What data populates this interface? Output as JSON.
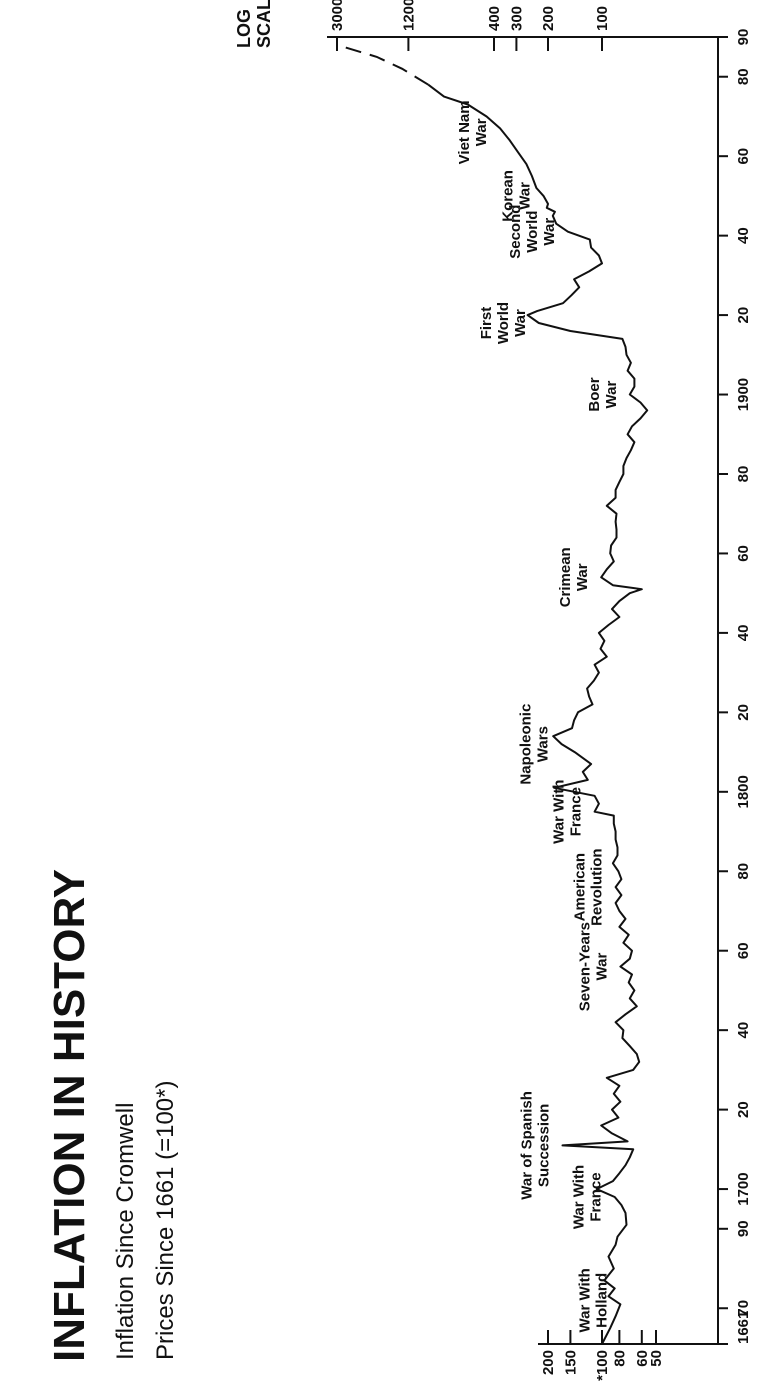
{
  "chart_data": {
    "type": "line",
    "title": "INFLATION IN HISTORY",
    "subtitle": "Inflation Since Cromwell",
    "subtitle2": "Prices Since 1661 (=100*)",
    "scale_label": [
      "LOG",
      "SCALE"
    ],
    "scale": "log",
    "x_range": [
      1661,
      1990
    ],
    "x_tick_labels": [
      {
        "x": 1661,
        "label": "1661"
      },
      {
        "x": 1670,
        "label": "70"
      },
      {
        "x": 1690,
        "label": "90"
      },
      {
        "x": 1700,
        "label": "1700"
      },
      {
        "x": 1720,
        "label": "20"
      },
      {
        "x": 1740,
        "label": "40"
      },
      {
        "x": 1760,
        "label": "60"
      },
      {
        "x": 1780,
        "label": "80"
      },
      {
        "x": 1800,
        "label": "1800"
      },
      {
        "x": 1820,
        "label": "20"
      },
      {
        "x": 1840,
        "label": "40"
      },
      {
        "x": 1860,
        "label": "60"
      },
      {
        "x": 1880,
        "label": "80"
      },
      {
        "x": 1900,
        "label": "1900"
      },
      {
        "x": 1920,
        "label": "20"
      },
      {
        "x": 1940,
        "label": "40"
      },
      {
        "x": 1960,
        "label": "60"
      },
      {
        "x": 1980,
        "label": "80"
      },
      {
        "x": 1990,
        "label": "90"
      }
    ],
    "left_axis_ticks": [
      {
        "v": 50,
        "label": "50"
      },
      {
        "v": 60,
        "label": "60"
      },
      {
        "v": 80,
        "label": "80"
      },
      {
        "v": 100,
        "label": "*100"
      },
      {
        "v": 150,
        "label": "150"
      },
      {
        "v": 200,
        "label": "200"
      }
    ],
    "right_axis_ticks": [
      {
        "v": 100,
        "label": "100"
      },
      {
        "v": 200,
        "label": "200"
      },
      {
        "v": 300,
        "label": "300"
      },
      {
        "v": 400,
        "label": "400"
      },
      {
        "v": 1200,
        "label": "1200"
      },
      {
        "v": 3000,
        "label": "3000"
      }
    ],
    "series": [
      {
        "values_solid": [
          [
            1661,
            100
          ],
          [
            1665,
            90
          ],
          [
            1668,
            84
          ],
          [
            1671,
            79
          ],
          [
            1673,
            92
          ],
          [
            1675,
            85
          ],
          [
            1677,
            97
          ],
          [
            1680,
            86
          ],
          [
            1683,
            92
          ],
          [
            1686,
            84
          ],
          [
            1688,
            82
          ],
          [
            1691,
            73
          ],
          [
            1694,
            74
          ],
          [
            1696,
            78
          ],
          [
            1698,
            85
          ],
          [
            1700,
            107
          ],
          [
            1702,
            87
          ],
          [
            1704,
            80
          ],
          [
            1706,
            74
          ],
          [
            1708,
            70
          ],
          [
            1710,
            67
          ],
          [
            1711,
            166
          ],
          [
            1712,
            72
          ],
          [
            1714,
            88
          ],
          [
            1716,
            101
          ],
          [
            1718,
            81
          ],
          [
            1720,
            88
          ],
          [
            1722,
            79
          ],
          [
            1724,
            86
          ],
          [
            1726,
            80
          ],
          [
            1728,
            94
          ],
          [
            1730,
            67
          ],
          [
            1732,
            62
          ],
          [
            1734,
            64
          ],
          [
            1736,
            70
          ],
          [
            1738,
            77
          ],
          [
            1740,
            76
          ],
          [
            1742,
            84
          ],
          [
            1744,
            74
          ],
          [
            1746,
            64
          ],
          [
            1748,
            70
          ],
          [
            1750,
            66
          ],
          [
            1752,
            71
          ],
          [
            1754,
            68
          ],
          [
            1756,
            79
          ],
          [
            1758,
            70
          ],
          [
            1760,
            68
          ],
          [
            1762,
            76
          ],
          [
            1764,
            71
          ],
          [
            1766,
            80
          ],
          [
            1768,
            74
          ],
          [
            1770,
            80
          ],
          [
            1772,
            84
          ],
          [
            1774,
            78
          ],
          [
            1776,
            84
          ],
          [
            1778,
            78
          ],
          [
            1780,
            81
          ],
          [
            1782,
            87
          ],
          [
            1784,
            82
          ],
          [
            1786,
            82
          ],
          [
            1788,
            84
          ],
          [
            1790,
            84
          ],
          [
            1792,
            86
          ],
          [
            1794,
            86
          ],
          [
            1795,
            110
          ],
          [
            1797,
            104
          ],
          [
            1799,
            110
          ],
          [
            1801,
            185
          ],
          [
            1803,
            120
          ],
          [
            1805,
            128
          ],
          [
            1807,
            115
          ],
          [
            1810,
            142
          ],
          [
            1812,
            168
          ],
          [
            1814,
            187
          ],
          [
            1816,
            147
          ],
          [
            1818,
            143
          ],
          [
            1820,
            136
          ],
          [
            1822,
            113
          ],
          [
            1824,
            118
          ],
          [
            1826,
            121
          ],
          [
            1828,
            111
          ],
          [
            1830,
            104
          ],
          [
            1832,
            110
          ],
          [
            1834,
            94
          ],
          [
            1836,
            102
          ],
          [
            1838,
            97
          ],
          [
            1840,
            104
          ],
          [
            1842,
            92
          ],
          [
            1844,
            80
          ],
          [
            1846,
            88
          ],
          [
            1848,
            80
          ],
          [
            1850,
            70
          ],
          [
            1851,
            60
          ],
          [
            1852,
            87
          ],
          [
            1854,
            101
          ],
          [
            1856,
            94
          ],
          [
            1858,
            86
          ],
          [
            1860,
            90
          ],
          [
            1862,
            89
          ],
          [
            1864,
            83
          ],
          [
            1866,
            83
          ],
          [
            1868,
            84
          ],
          [
            1870,
            83
          ],
          [
            1872,
            94
          ],
          [
            1874,
            84
          ],
          [
            1876,
            84
          ],
          [
            1878,
            80
          ],
          [
            1880,
            76
          ],
          [
            1882,
            76
          ],
          [
            1884,
            73
          ],
          [
            1886,
            69
          ],
          [
            1888,
            66
          ],
          [
            1890,
            72
          ],
          [
            1892,
            68
          ],
          [
            1894,
            61
          ],
          [
            1896,
            56
          ],
          [
            1898,
            61
          ],
          [
            1900,
            70
          ],
          [
            1902,
            66
          ],
          [
            1904,
            66
          ],
          [
            1906,
            72
          ],
          [
            1908,
            69
          ],
          [
            1910,
            73
          ],
          [
            1912,
            74
          ],
          [
            1914,
            77
          ],
          [
            1916,
            150
          ],
          [
            1918,
            225
          ],
          [
            1920,
            260
          ],
          [
            1921,
            230
          ],
          [
            1923,
            165
          ],
          [
            1925,
            148
          ],
          [
            1927,
            134
          ],
          [
            1929,
            143
          ],
          [
            1931,
            118
          ],
          [
            1933,
            100
          ],
          [
            1935,
            104
          ],
          [
            1937,
            115
          ],
          [
            1939,
            117
          ],
          [
            1941,
            155
          ],
          [
            1943,
            180
          ],
          [
            1945,
            188
          ],
          [
            1946,
            183
          ],
          [
            1947,
            203
          ],
          [
            1948,
            200
          ],
          [
            1950,
            212
          ],
          [
            1952,
            232
          ],
          [
            1955,
            246
          ],
          [
            1958,
            264
          ],
          [
            1961,
            294
          ],
          [
            1964,
            327
          ],
          [
            1967,
            370
          ],
          [
            1970,
            440
          ],
          [
            1973,
            560
          ],
          [
            1975,
            760
          ],
          [
            1978,
            930
          ]
        ]
      },
      {
        "values_dashed": [
          [
            1978,
            930
          ],
          [
            1982,
            1300
          ],
          [
            1985,
            1800
          ],
          [
            1988,
            3000
          ]
        ]
      }
    ],
    "annotations": [
      {
        "x": 1672,
        "text": [
          "War With",
          "Holland"
        ]
      },
      {
        "x": 1698,
        "text": [
          "War With",
          "France"
        ]
      },
      {
        "x": 1711,
        "text": [
          "War of Spanish",
          "Succession"
        ]
      },
      {
        "x": 1756,
        "text": [
          "Seven-Years",
          "War"
        ]
      },
      {
        "x": 1776,
        "text": [
          "American",
          "Revolution"
        ]
      },
      {
        "x": 1795,
        "text": [
          "War With",
          "France"
        ]
      },
      {
        "x": 1812,
        "text": [
          "Napoleonic",
          "Wars"
        ]
      },
      {
        "x": 1854,
        "text": [
          "Crimean",
          "War"
        ]
      },
      {
        "x": 1900,
        "text": [
          "Boer",
          "War"
        ]
      },
      {
        "x": 1918,
        "text": [
          "First",
          "World",
          "War"
        ]
      },
      {
        "x": 1941,
        "text": [
          "Second",
          "World",
          "War"
        ]
      },
      {
        "x": 1950,
        "text": [
          "Korean",
          "War"
        ]
      },
      {
        "x": 1966,
        "text": [
          "Viet Nam",
          "War"
        ]
      }
    ]
  }
}
